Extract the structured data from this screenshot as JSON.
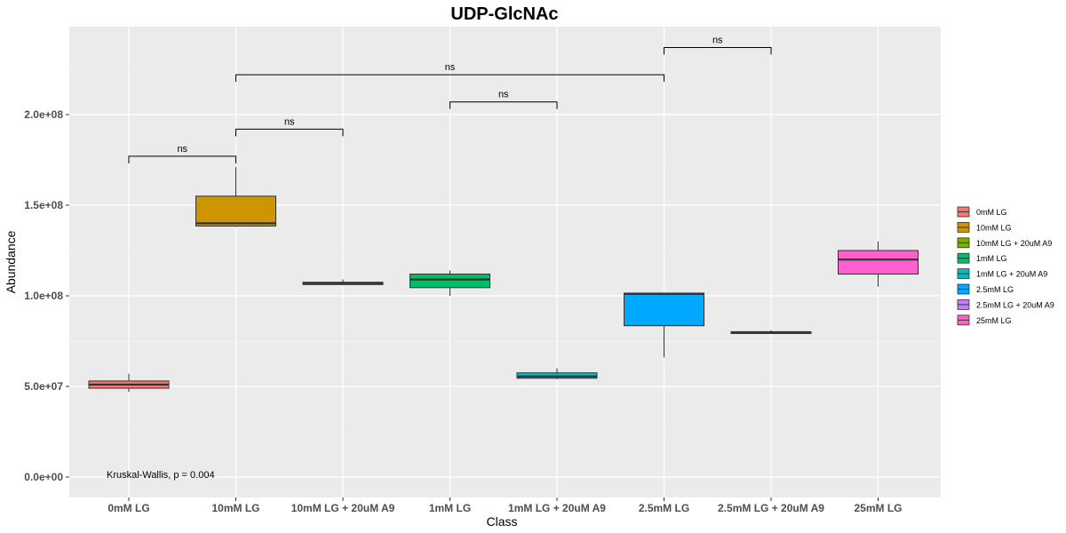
{
  "chart_data": {
    "type": "box",
    "title": "UDP-GlcNAc",
    "xlabel": "Class",
    "ylabel": "Abundance",
    "ylim": [
      -5000000.0,
      250000000.0
    ],
    "yticks": [
      0,
      50000000,
      100000000,
      150000000,
      200000000
    ],
    "ytick_labels": [
      "0.0e+00",
      "5.0e+07",
      "1.0e+08",
      "1.5e+08",
      "2.0e+08"
    ],
    "categories": [
      "0mM LG",
      "10mM LG",
      "10mM LG + 20uM A9",
      "1mM LG",
      "1mM LG + 20uM A9",
      "2.5mM LG",
      "2.5mM LG + 20uM A9",
      "25mM LG"
    ],
    "boxes": [
      {
        "category": "0mM LG",
        "min": 47000000,
        "q1": 49000000,
        "median": 51000000,
        "q3": 53000000,
        "max": 57000000,
        "color": "#F8766D"
      },
      {
        "category": "10mM LG",
        "min": 138000000,
        "q1": 138500000,
        "median": 140000000,
        "q3": 155000000,
        "max": 171000000,
        "color": "#CD9600"
      },
      {
        "category": "10mM LG + 20uM A9",
        "min": 106000000,
        "q1": 106200000,
        "median": 107000000,
        "q3": 107500000,
        "max": 109000000,
        "color": "#7CAE00"
      },
      {
        "category": "1mM LG",
        "min": 100000000,
        "q1": 104500000,
        "median": 109000000,
        "q3": 112000000,
        "max": 114000000,
        "color": "#00BE67"
      },
      {
        "category": "1mM LG + 20uM A9",
        "min": 54000000,
        "q1": 54500000,
        "median": 55500000,
        "q3": 57500000,
        "max": 60000000,
        "color": "#00BFC4"
      },
      {
        "category": "2.5mM LG",
        "min": 66000000,
        "q1": 83500000,
        "median": 101000000,
        "q3": 101500000,
        "max": 101500000,
        "color": "#00A9FF"
      },
      {
        "category": "2.5mM LG + 20uM A9",
        "min": 79000000,
        "q1": 79200000,
        "median": 79800000,
        "q3": 80200000,
        "max": 81000000,
        "color": "#C77CFF"
      },
      {
        "category": "25mM LG",
        "min": 105000000,
        "q1": 112000000,
        "median": 120000000,
        "q3": 125000000,
        "max": 130000000,
        "color": "#FF61CC"
      }
    ],
    "comparisons": [
      {
        "from": "0mM LG",
        "to": "10mM LG",
        "y": 177000000,
        "label": "ns"
      },
      {
        "from": "10mM LG",
        "to": "10mM LG + 20uM A9",
        "y": 192000000,
        "label": "ns"
      },
      {
        "from": "1mM LG",
        "to": "1mM LG + 20uM A9",
        "y": 207000000,
        "label": "ns"
      },
      {
        "from": "10mM LG",
        "to": "2.5mM LG",
        "y": 222000000,
        "label": "ns"
      },
      {
        "from": "2.5mM LG",
        "to": "2.5mM LG + 20uM A9",
        "y": 237000000,
        "label": "ns"
      }
    ],
    "test_label": "Kruskal-Wallis, p = 0.004",
    "legend_position": "right",
    "grid": true
  }
}
